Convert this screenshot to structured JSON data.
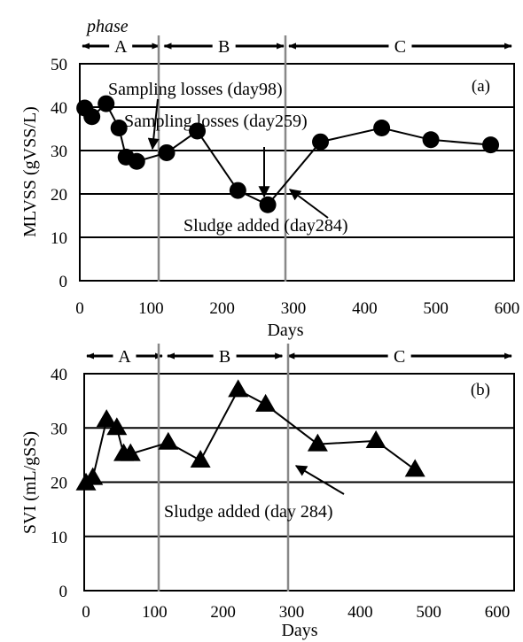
{
  "chart_data": [
    {
      "type": "line",
      "panel_label": "(a)",
      "xlabel": "Days",
      "ylabel": "MLVSS (gVSS/L)",
      "xlim": [
        0,
        600
      ],
      "ylim": [
        0,
        50
      ],
      "x_ticks": [
        "0",
        "100",
        "200",
        "300",
        "400",
        "500",
        "600"
      ],
      "y_ticks": [
        "0",
        "10",
        "20",
        "30",
        "40",
        "50"
      ],
      "grid": "horizontal",
      "phase_title": "phase",
      "phases": [
        {
          "label": "A",
          "start": 0,
          "end": 115
        },
        {
          "label": "B",
          "start": 115,
          "end": 290
        },
        {
          "label": "C",
          "start": 290,
          "end": 600
        }
      ],
      "phase_boundaries": [
        115,
        290
      ],
      "marker": "circle",
      "series": [
        {
          "x": [
            7,
            17,
            37,
            55,
            65,
            80,
            122,
            165,
            222,
            264,
            338,
            424,
            493,
            577
          ],
          "y": [
            39.8,
            37.8,
            40.8,
            35.2,
            28.5,
            27.5,
            29.5,
            34.5,
            20.8,
            17.5,
            32.0,
            35.2,
            32.5,
            31.3
          ]
        }
      ],
      "annotations": [
        {
          "text": "Sampling losses (day98)",
          "arrow_to": [
            98,
            28.6
          ],
          "label_at": [
            260,
            45.5
          ]
        },
        {
          "text": "Sampling losses (day259)",
          "arrow_to": [
            259,
            19.5
          ],
          "label_at": [
            290,
            35.6
          ]
        },
        {
          "text": "Sludge added (day284)",
          "arrow_to": [
            284,
            20.5
          ],
          "label_at": [
            350,
            13.3
          ]
        }
      ]
    },
    {
      "type": "line",
      "panel_label": "(b)",
      "xlabel": "Days",
      "ylabel": "SVI (mL/gSS)",
      "xlim": [
        0,
        600
      ],
      "ylim": [
        0,
        40
      ],
      "x_ticks": [
        "0",
        "100",
        "200",
        "300",
        "400",
        "500",
        "600"
      ],
      "y_ticks": [
        "0",
        "10",
        "20",
        "30",
        "40"
      ],
      "grid": "horizontal",
      "phases": [
        {
          "label": "A",
          "start": 0,
          "end": 115
        },
        {
          "label": "B",
          "start": 115,
          "end": 290
        },
        {
          "label": "C",
          "start": 290,
          "end": 600
        }
      ],
      "phase_boundaries": [
        115,
        290
      ],
      "marker": "triangle",
      "series": [
        {
          "x": [
            0,
            10,
            30,
            45,
            55,
            65,
            120,
            167,
            222,
            262,
            338,
            423,
            480
          ],
          "y": [
            19.8,
            20.8,
            31.5,
            30.0,
            25.2,
            25.2,
            27.3,
            24.0,
            37.0,
            34.3,
            27.0,
            27.6,
            22.3
          ]
        }
      ],
      "annotations": [
        {
          "text": "Sludge added (day 284)",
          "arrow_to": [
            284,
            23.5
          ],
          "label_at": [
            320,
            14.5
          ]
        }
      ]
    }
  ]
}
